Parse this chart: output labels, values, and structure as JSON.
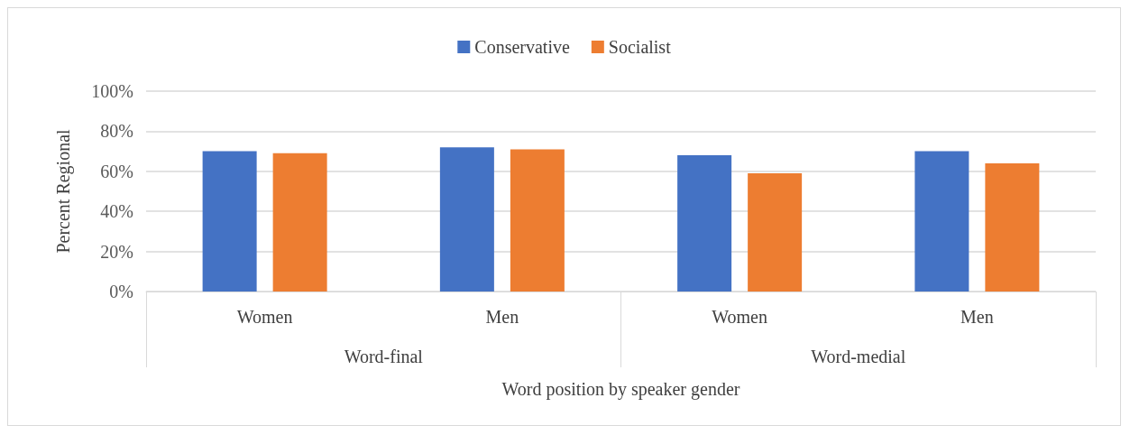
{
  "chart_data": {
    "type": "bar",
    "categories": [
      "Women",
      "Men",
      "Women",
      "Men"
    ],
    "series": [
      {
        "name": "Conservative",
        "color": "#4472c4",
        "values": [
          70,
          72,
          68,
          70
        ]
      },
      {
        "name": "Socialist",
        "color": "#ed7d31",
        "values": [
          69,
          71,
          59,
          64
        ]
      }
    ],
    "ylabel": "Percent Regional",
    "xlabel": "Word position by speaker gender",
    "annotations": [
      "Word-final",
      "Word-medial"
    ],
    "ylim": [
      0,
      100
    ],
    "yticks": [
      {
        "value": 0,
        "label": "0%"
      },
      {
        "value": 20,
        "label": "20%"
      },
      {
        "value": 40,
        "label": "40%"
      },
      {
        "value": 60,
        "label": "60%"
      },
      {
        "value": 80,
        "label": "80%"
      },
      {
        "value": 100,
        "label": "100%"
      }
    ],
    "grid": "y",
    "legend": "top"
  }
}
